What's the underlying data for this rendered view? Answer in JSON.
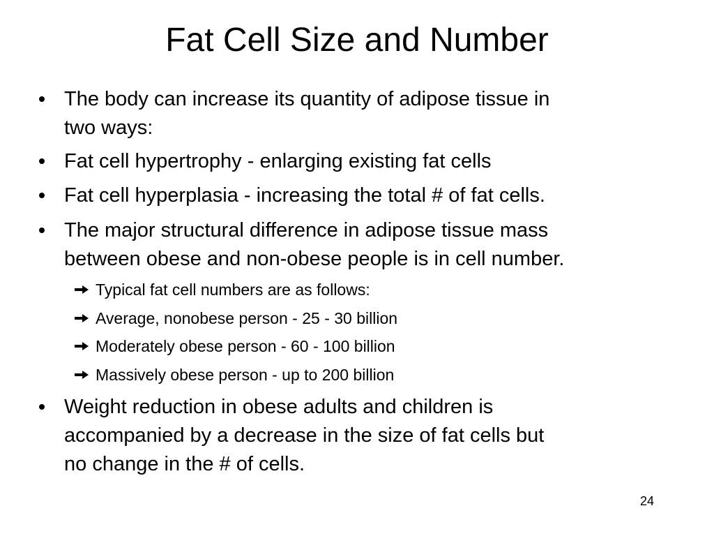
{
  "title": "Fat Cell Size and Number",
  "bullets": [
    {
      "lines": [
        "The body can increase its quantity of adipose tissue in",
        "two ways:"
      ]
    },
    {
      "lines": [
        "Fat cell hypertrophy - enlarging existing fat cells"
      ]
    },
    {
      "lines": [
        "Fat cell hyperplasia - increasing the total # of fat cells."
      ]
    },
    {
      "lines": [
        "The major structural difference in adipose tissue mass",
        "between obese and non-obese people is in cell number."
      ],
      "sub": [
        "Typical fat cell numbers are as follows:",
        "Average, nonobese person - 25 - 30 billion",
        "Moderately obese person - 60 - 100 billion",
        "Massively obese person - up to 200 billion"
      ]
    },
    {
      "lines": [
        "Weight reduction in obese adults and children is",
        "accompanied by a decrease in the size of fat cells but",
        "no change in the # of cells."
      ]
    }
  ],
  "page_number": "24"
}
